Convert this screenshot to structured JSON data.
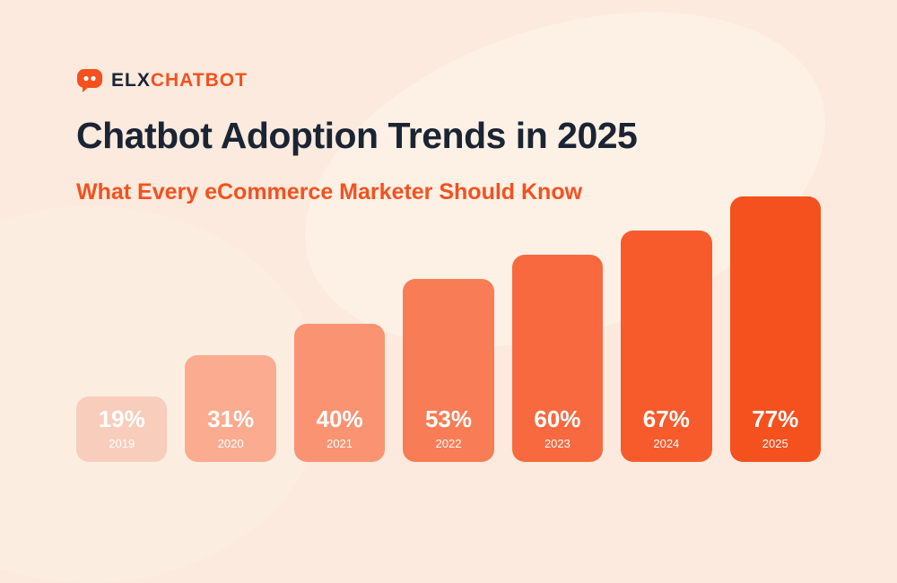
{
  "brand": {
    "logo_text_primary": "ELX",
    "logo_text_secondary": "CHATBOT"
  },
  "header": {
    "title": "Chatbot Adoption Trends in 2025",
    "subtitle": "What Every eCommerce Marketer Should Know"
  },
  "chart_data": {
    "type": "bar",
    "title": "Chatbot Adoption Trends in 2025",
    "categories": [
      "2019",
      "2020",
      "2021",
      "2022",
      "2023",
      "2024",
      "2025"
    ],
    "values": [
      19,
      31,
      40,
      53,
      60,
      67,
      77
    ],
    "value_labels": [
      "19%",
      "31%",
      "40%",
      "53%",
      "60%",
      "67%",
      "77%"
    ],
    "unit": "%",
    "xlabel": "",
    "ylabel": "",
    "ylim": [
      0,
      100
    ],
    "grid": false,
    "legend": "none",
    "bar_colors": [
      "#F8CDBB",
      "#FBAB90",
      "#FA9372",
      "#F87C55",
      "#F8693F",
      "#F75B2C",
      "#F5511E"
    ],
    "label_color": "#FFFFFF"
  },
  "colors": {
    "background": "#FBEADD",
    "accent": "#F4511E",
    "heading": "#1A2433"
  }
}
